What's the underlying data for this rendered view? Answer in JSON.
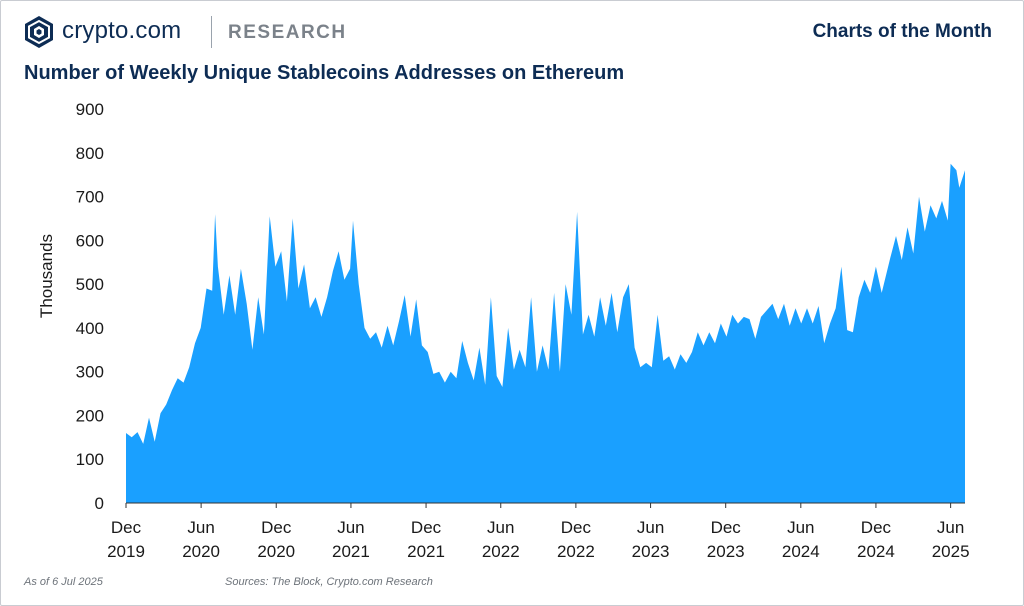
{
  "header": {
    "brand": "crypto.com",
    "section": "RESEARCH",
    "series_label": "Charts of the Month",
    "logo_icon": "crypto-com-shield-logo"
  },
  "chart_data": {
    "type": "area",
    "title": "Number of Weekly Unique Stablecoins Addresses on Ethereum",
    "ylabel": "Thousands",
    "xlabel": "",
    "ylim": [
      0,
      900
    ],
    "yticks": [
      0,
      100,
      200,
      300,
      400,
      500,
      600,
      700,
      800,
      900
    ],
    "xlim": [
      "2019-12-01",
      "2025-07-06"
    ],
    "xticks": [
      {
        "date": "2019-12-01",
        "line1": "Dec",
        "line2": "2019"
      },
      {
        "date": "2020-06-01",
        "line1": "Jun",
        "line2": "2020"
      },
      {
        "date": "2020-12-01",
        "line1": "Dec",
        "line2": "2020"
      },
      {
        "date": "2021-06-01",
        "line1": "Jun",
        "line2": "2021"
      },
      {
        "date": "2021-12-01",
        "line1": "Dec",
        "line2": "2021"
      },
      {
        "date": "2022-06-01",
        "line1": "Jun",
        "line2": "2022"
      },
      {
        "date": "2022-12-01",
        "line1": "Dec",
        "line2": "2022"
      },
      {
        "date": "2023-06-01",
        "line1": "Jun",
        "line2": "2023"
      },
      {
        "date": "2023-12-01",
        "line1": "Dec",
        "line2": "2023"
      },
      {
        "date": "2024-06-01",
        "line1": "Jun",
        "line2": "2024"
      },
      {
        "date": "2024-12-01",
        "line1": "Dec",
        "line2": "2024"
      },
      {
        "date": "2025-06-01",
        "line1": "Jun",
        "line2": "2025"
      }
    ],
    "grid": false,
    "legend": "none",
    "fill_color": "#1aa0ff",
    "series": [
      {
        "points": [
          [
            "2019-12-01",
            160
          ],
          [
            "2019-12-15",
            150
          ],
          [
            "2019-12-29",
            162
          ],
          [
            "2020-01-12",
            135
          ],
          [
            "2020-01-26",
            195
          ],
          [
            "2020-02-09",
            140
          ],
          [
            "2020-02-23",
            205
          ],
          [
            "2020-03-08",
            225
          ],
          [
            "2020-03-22",
            258
          ],
          [
            "2020-04-05",
            285
          ],
          [
            "2020-04-19",
            275
          ],
          [
            "2020-05-03",
            310
          ],
          [
            "2020-05-17",
            365
          ],
          [
            "2020-05-31",
            400
          ],
          [
            "2020-06-14",
            490
          ],
          [
            "2020-06-28",
            485
          ],
          [
            "2020-07-05",
            660
          ],
          [
            "2020-07-12",
            540
          ],
          [
            "2020-07-26",
            430
          ],
          [
            "2020-08-09",
            520
          ],
          [
            "2020-08-23",
            430
          ],
          [
            "2020-09-06",
            535
          ],
          [
            "2020-09-20",
            455
          ],
          [
            "2020-10-04",
            350
          ],
          [
            "2020-10-18",
            470
          ],
          [
            "2020-11-01",
            385
          ],
          [
            "2020-11-15",
            655
          ],
          [
            "2020-11-29",
            540
          ],
          [
            "2020-12-13",
            575
          ],
          [
            "2020-12-27",
            460
          ],
          [
            "2021-01-10",
            650
          ],
          [
            "2021-01-24",
            490
          ],
          [
            "2021-02-07",
            545
          ],
          [
            "2021-02-21",
            445
          ],
          [
            "2021-03-07",
            470
          ],
          [
            "2021-03-21",
            425
          ],
          [
            "2021-04-04",
            470
          ],
          [
            "2021-04-18",
            530
          ],
          [
            "2021-05-02",
            575
          ],
          [
            "2021-05-16",
            510
          ],
          [
            "2021-05-30",
            535
          ],
          [
            "2021-06-06",
            645
          ],
          [
            "2021-06-20",
            500
          ],
          [
            "2021-07-04",
            400
          ],
          [
            "2021-07-18",
            375
          ],
          [
            "2021-08-01",
            390
          ],
          [
            "2021-08-15",
            355
          ],
          [
            "2021-08-29",
            405
          ],
          [
            "2021-09-12",
            360
          ],
          [
            "2021-09-26",
            415
          ],
          [
            "2021-10-10",
            475
          ],
          [
            "2021-10-24",
            380
          ],
          [
            "2021-11-07",
            465
          ],
          [
            "2021-11-21",
            360
          ],
          [
            "2021-12-05",
            345
          ],
          [
            "2021-12-19",
            295
          ],
          [
            "2022-01-02",
            300
          ],
          [
            "2022-01-16",
            275
          ],
          [
            "2022-01-30",
            300
          ],
          [
            "2022-02-13",
            285
          ],
          [
            "2022-02-27",
            370
          ],
          [
            "2022-03-13",
            320
          ],
          [
            "2022-03-27",
            280
          ],
          [
            "2022-04-10",
            355
          ],
          [
            "2022-04-24",
            270
          ],
          [
            "2022-05-08",
            470
          ],
          [
            "2022-05-22",
            290
          ],
          [
            "2022-06-05",
            265
          ],
          [
            "2022-06-19",
            400
          ],
          [
            "2022-07-03",
            305
          ],
          [
            "2022-07-17",
            350
          ],
          [
            "2022-07-31",
            310
          ],
          [
            "2022-08-14",
            470
          ],
          [
            "2022-08-28",
            300
          ],
          [
            "2022-09-11",
            360
          ],
          [
            "2022-09-25",
            305
          ],
          [
            "2022-10-09",
            480
          ],
          [
            "2022-10-23",
            300
          ],
          [
            "2022-11-06",
            500
          ],
          [
            "2022-11-20",
            430
          ],
          [
            "2022-12-04",
            665
          ],
          [
            "2022-12-18",
            385
          ],
          [
            "2023-01-01",
            430
          ],
          [
            "2023-01-15",
            380
          ],
          [
            "2023-01-29",
            470
          ],
          [
            "2023-02-12",
            405
          ],
          [
            "2023-02-26",
            480
          ],
          [
            "2023-03-12",
            390
          ],
          [
            "2023-03-26",
            470
          ],
          [
            "2023-04-09",
            500
          ],
          [
            "2023-04-23",
            355
          ],
          [
            "2023-05-07",
            310
          ],
          [
            "2023-05-21",
            320
          ],
          [
            "2023-06-04",
            310
          ],
          [
            "2023-06-18",
            430
          ],
          [
            "2023-07-02",
            325
          ],
          [
            "2023-07-16",
            335
          ],
          [
            "2023-07-30",
            305
          ],
          [
            "2023-08-13",
            340
          ],
          [
            "2023-08-27",
            320
          ],
          [
            "2023-09-10",
            345
          ],
          [
            "2023-09-24",
            390
          ],
          [
            "2023-10-08",
            360
          ],
          [
            "2023-10-22",
            390
          ],
          [
            "2023-11-05",
            365
          ],
          [
            "2023-11-19",
            410
          ],
          [
            "2023-12-03",
            380
          ],
          [
            "2023-12-17",
            430
          ],
          [
            "2023-12-31",
            410
          ],
          [
            "2024-01-14",
            425
          ],
          [
            "2024-01-28",
            420
          ],
          [
            "2024-02-11",
            375
          ],
          [
            "2024-02-25",
            425
          ],
          [
            "2024-03-10",
            440
          ],
          [
            "2024-03-24",
            455
          ],
          [
            "2024-04-07",
            420
          ],
          [
            "2024-04-21",
            455
          ],
          [
            "2024-05-05",
            405
          ],
          [
            "2024-05-19",
            445
          ],
          [
            "2024-06-02",
            410
          ],
          [
            "2024-06-16",
            445
          ],
          [
            "2024-06-30",
            410
          ],
          [
            "2024-07-14",
            450
          ],
          [
            "2024-07-28",
            365
          ],
          [
            "2024-08-11",
            410
          ],
          [
            "2024-08-25",
            445
          ],
          [
            "2024-09-08",
            540
          ],
          [
            "2024-09-22",
            395
          ],
          [
            "2024-10-06",
            390
          ],
          [
            "2024-10-20",
            470
          ],
          [
            "2024-11-03",
            510
          ],
          [
            "2024-11-17",
            480
          ],
          [
            "2024-12-01",
            540
          ],
          [
            "2024-12-15",
            480
          ],
          [
            "2025-01-05",
            560
          ],
          [
            "2025-01-19",
            610
          ],
          [
            "2025-02-02",
            555
          ],
          [
            "2025-02-16",
            630
          ],
          [
            "2025-03-02",
            570
          ],
          [
            "2025-03-16",
            700
          ],
          [
            "2025-03-30",
            620
          ],
          [
            "2025-04-13",
            680
          ],
          [
            "2025-04-27",
            650
          ],
          [
            "2025-05-11",
            690
          ],
          [
            "2025-05-25",
            645
          ],
          [
            "2025-06-01",
            775
          ],
          [
            "2025-06-15",
            760
          ],
          [
            "2025-06-22",
            720
          ],
          [
            "2025-07-06",
            760
          ]
        ]
      }
    ]
  },
  "footer": {
    "as_of": "As of 6 Jul 2025",
    "sources": "Sources: The Block, Crypto.com Research"
  }
}
